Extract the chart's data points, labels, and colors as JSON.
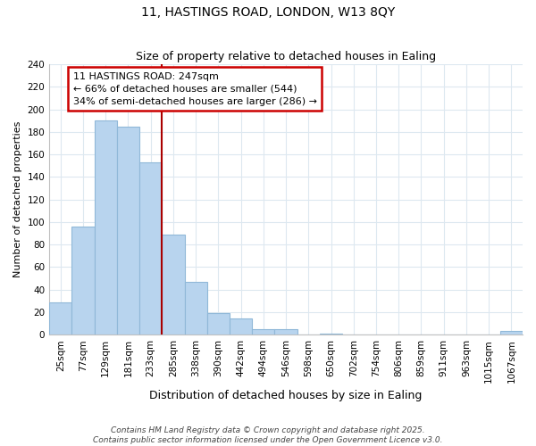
{
  "title": "11, HASTINGS ROAD, LONDON, W13 8QY",
  "subtitle": "Size of property relative to detached houses in Ealing",
  "xlabel": "Distribution of detached houses by size in Ealing",
  "ylabel": "Number of detached properties",
  "bin_labels": [
    "25sqm",
    "77sqm",
    "129sqm",
    "181sqm",
    "233sqm",
    "285sqm",
    "338sqm",
    "390sqm",
    "442sqm",
    "494sqm",
    "546sqm",
    "598sqm",
    "650sqm",
    "702sqm",
    "754sqm",
    "806sqm",
    "859sqm",
    "911sqm",
    "963sqm",
    "1015sqm",
    "1067sqm"
  ],
  "bar_values": [
    29,
    96,
    190,
    185,
    153,
    89,
    47,
    19,
    14,
    5,
    5,
    0,
    1,
    0,
    0,
    0,
    0,
    0,
    0,
    0,
    3
  ],
  "bar_color": "#b8d4ee",
  "bar_edge_color": "#90b8d8",
  "vline_color": "#aa0000",
  "vline_bin_index": 4,
  "annotation_line1": "11 HASTINGS ROAD: 247sqm",
  "annotation_line2": "← 66% of detached houses are smaller (544)",
  "annotation_line3": "34% of semi-detached houses are larger (286) →",
  "annotation_box_color": "#ffffff",
  "annotation_box_edge_color": "#cc0000",
  "ylim_max": 240,
  "ytick_step": 20,
  "background_color": "#ffffff",
  "grid_color": "#dde8f0",
  "footer_line1": "Contains HM Land Registry data © Crown copyright and database right 2025.",
  "footer_line2": "Contains public sector information licensed under the Open Government Licence v3.0.",
  "title_fontsize": 10,
  "subtitle_fontsize": 9,
  "xlabel_fontsize": 9,
  "ylabel_fontsize": 8,
  "tick_fontsize": 7.5,
  "annotation_fontsize": 8,
  "footer_fontsize": 6.5
}
